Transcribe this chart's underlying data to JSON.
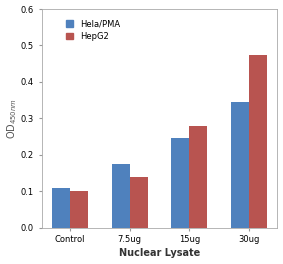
{
  "categories": [
    "Control",
    "7.5ug",
    "15ug",
    "30ug"
  ],
  "hela_pma": [
    0.11,
    0.175,
    0.245,
    0.345
  ],
  "hepg2": [
    0.1,
    0.14,
    0.28,
    0.475
  ],
  "hela_color": "#4F81BD",
  "hepg2_color": "#B85450",
  "xlabel": "Nuclear Lysate",
  "ylim": [
    0,
    0.6
  ],
  "yticks": [
    0.0,
    0.1,
    0.2,
    0.3,
    0.4,
    0.5,
    0.6
  ],
  "legend_hela": "Hela/PMA",
  "legend_hepg2": "HepG2",
  "bg_color": "#FFFFFF",
  "plot_bg_color": "#FFFFFF",
  "bar_width": 0.3,
  "fontsize_axis": 7,
  "fontsize_tick": 6,
  "fontsize_legend": 6,
  "fontsize_xlabel": 7
}
